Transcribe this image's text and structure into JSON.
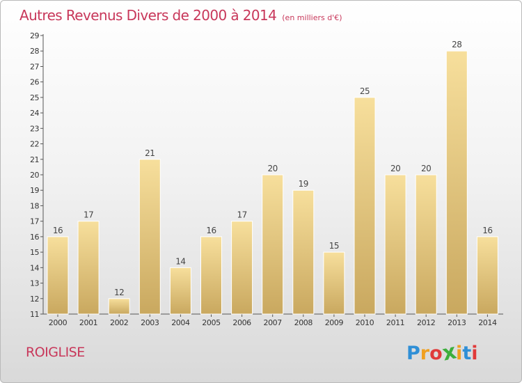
{
  "title": "Autres Revenus Divers de 2000 à 2014",
  "unit_note": "(en milliers d'€)",
  "commune": "ROIGLISE",
  "brand": {
    "letters": [
      "P",
      "r",
      "o",
      "x",
      "i",
      "t",
      "i"
    ],
    "colors": [
      "#2f8fd6",
      "#f0a020",
      "#e03a3a",
      "#3cae3c",
      "#f0a020",
      "#2f8fd6",
      "#e03a3a"
    ]
  },
  "colors": {
    "title": "#c8375a",
    "bar_top": "#f7df9c",
    "bar_bottom": "#c9a85f",
    "axis": "#555555"
  },
  "chart_data": {
    "type": "bar",
    "categories": [
      "2000",
      "2001",
      "2002",
      "2003",
      "2004",
      "2005",
      "2006",
      "2007",
      "2008",
      "2009",
      "2010",
      "2011",
      "2012",
      "2013",
      "2014"
    ],
    "values": [
      16,
      17,
      12,
      21,
      14,
      16,
      17,
      20,
      19,
      15,
      25,
      20,
      20,
      28,
      16
    ],
    "ylim": [
      11,
      29
    ],
    "yticks": [
      11,
      12,
      13,
      14,
      15,
      16,
      17,
      18,
      19,
      20,
      21,
      22,
      23,
      24,
      25,
      26,
      27,
      28,
      29
    ],
    "grid": false,
    "legend": "none"
  }
}
